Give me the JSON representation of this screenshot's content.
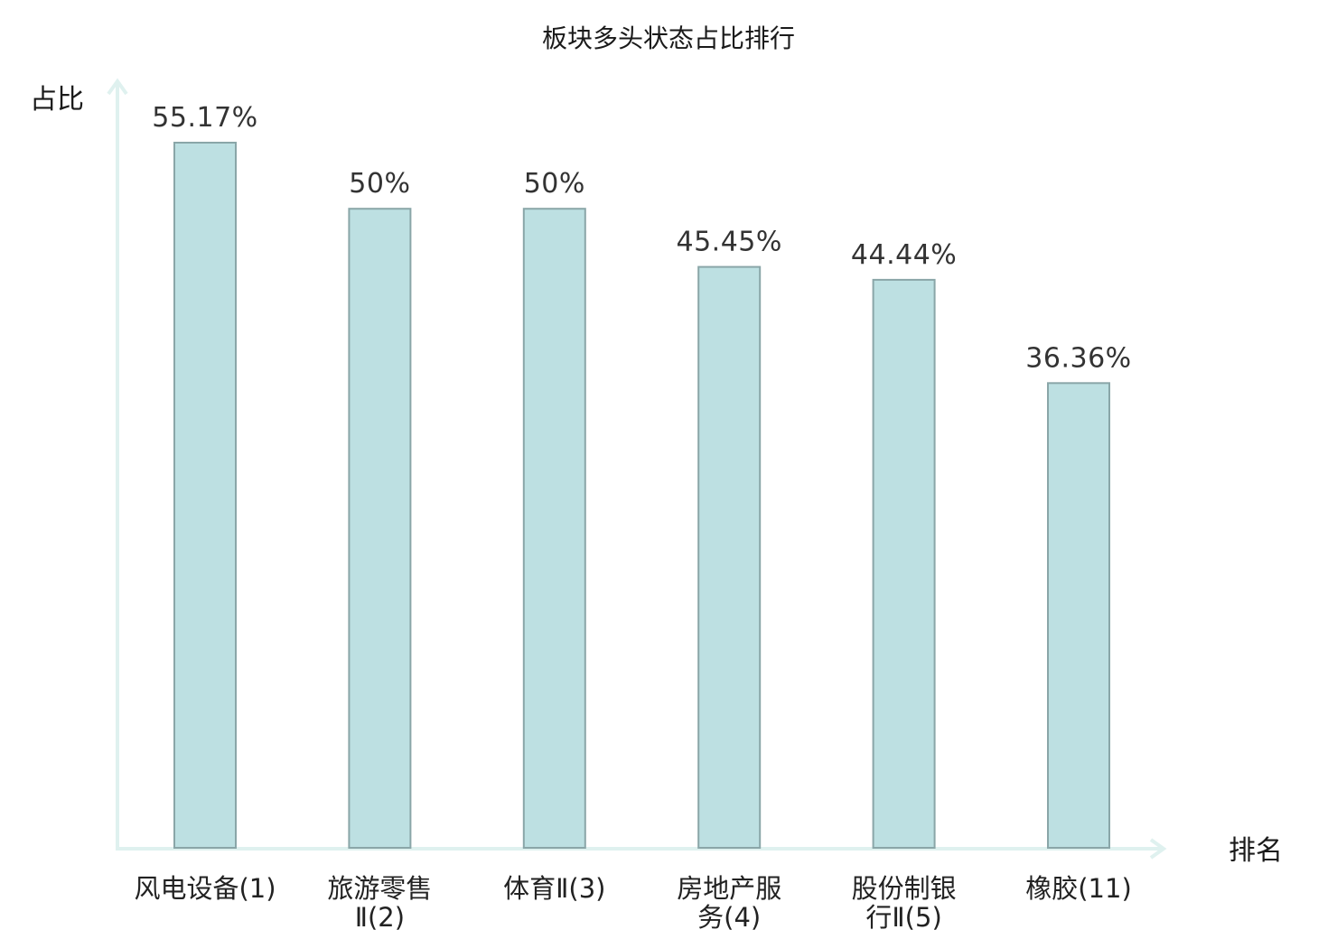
{
  "chart_data": {
    "type": "bar",
    "title": "板块多头状态占比排行",
    "ylabel": "占比",
    "xlabel": "排名",
    "ylim": [
      0,
      60
    ],
    "grid": false,
    "categories": [
      [
        "风电设备(1)"
      ],
      [
        "旅游零售",
        "Ⅱ(2)"
      ],
      [
        "体育Ⅱ(3)"
      ],
      [
        "房地产服",
        "务(4)"
      ],
      [
        "股份制银",
        "行Ⅱ(5)"
      ],
      [
        "橡胶(11)"
      ]
    ],
    "values": [
      55.17,
      50,
      50,
      45.45,
      44.44,
      36.36
    ],
    "value_labels": [
      "55.17%",
      "50%",
      "50%",
      "45.45%",
      "44.44%",
      "36.36%"
    ],
    "highlight_index": 5
  },
  "colors": {
    "bar_fill": "#bde0e2",
    "bar_stroke": "#8aa6a8",
    "axis": "#dff1ef",
    "highlight_text": "#e0191c",
    "text": "#222222"
  }
}
